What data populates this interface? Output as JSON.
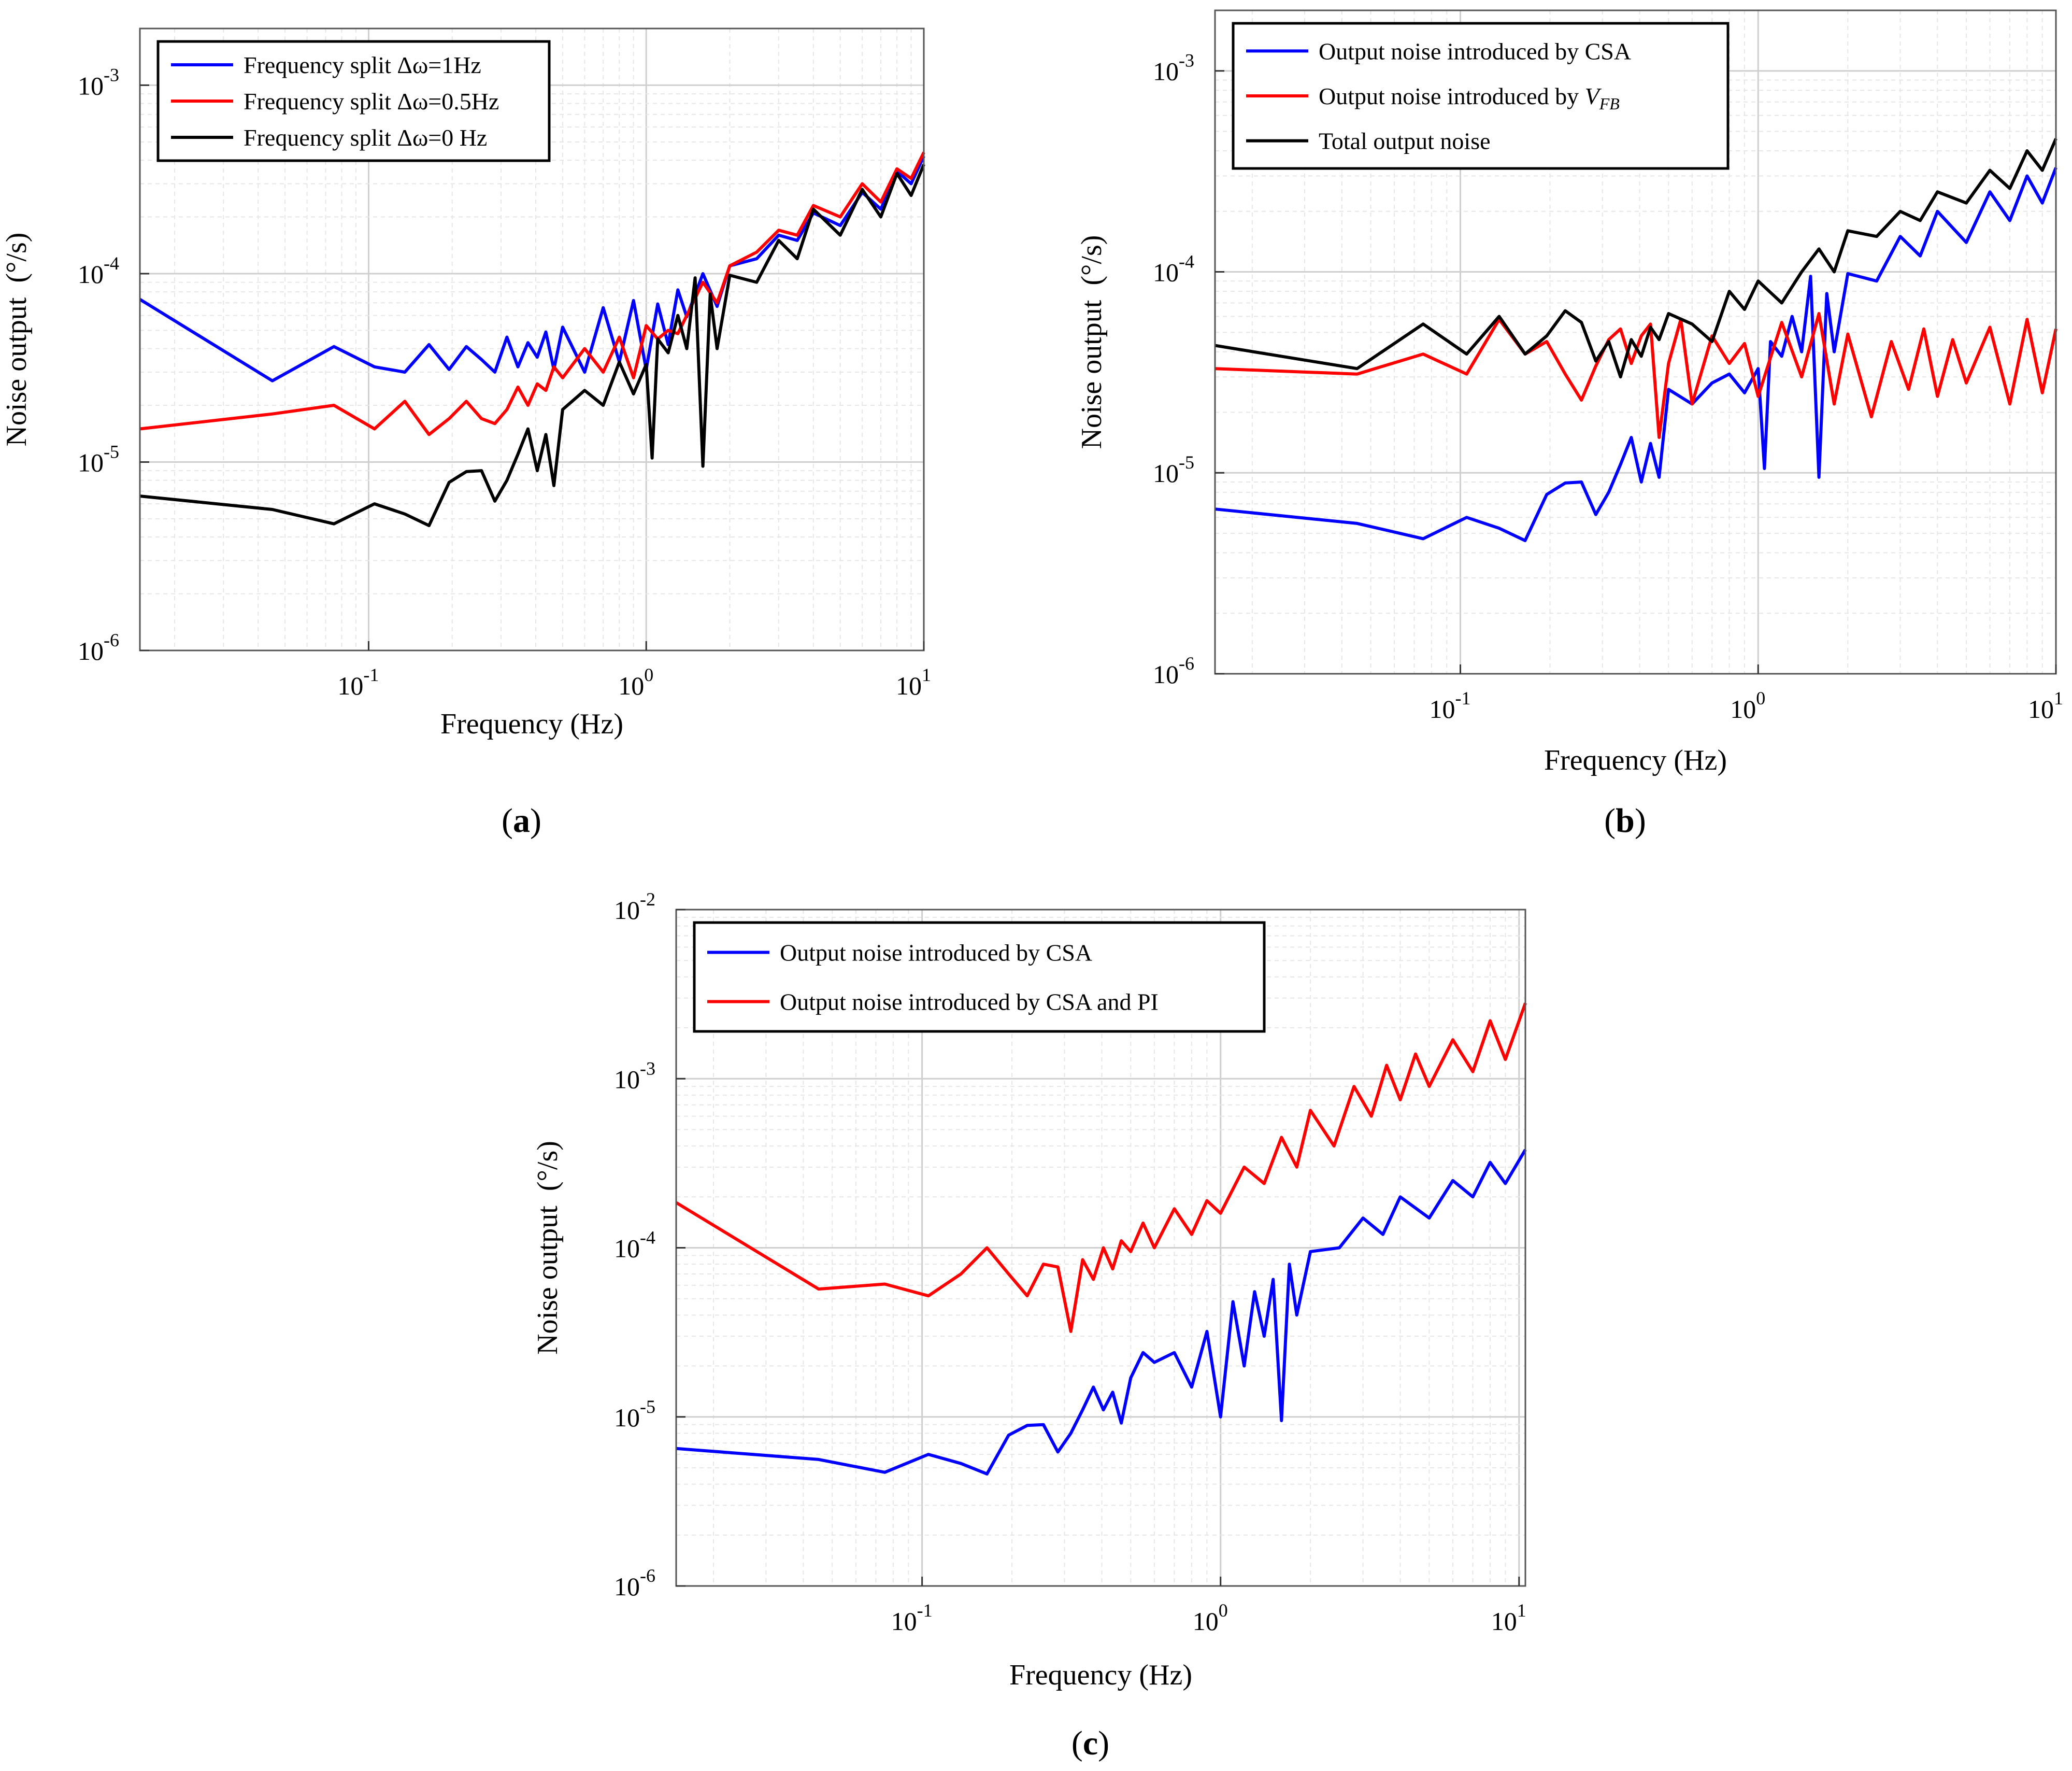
{
  "chart_data": [
    {
      "id": "a",
      "type": "line",
      "caption_letter": "a",
      "xlabel": "Frequency (Hz)",
      "ylabel": "Noise output  (°/s)",
      "xscale": "log",
      "yscale": "log",
      "xlim": [
        0.015,
        10
      ],
      "ylim": [
        1e-06,
        0.002
      ],
      "grid": true,
      "legend_position": "top-left",
      "x_tick_labels": [
        {
          "base": "10",
          "exp": "-1"
        },
        {
          "base": "10",
          "exp": "0"
        },
        {
          "base": "10",
          "exp": "1"
        }
      ],
      "y_tick_labels": [
        {
          "base": "10",
          "exp": "-6"
        },
        {
          "base": "10",
          "exp": "-5"
        },
        {
          "base": "10",
          "exp": "-4"
        },
        {
          "base": "10",
          "exp": "-3"
        }
      ],
      "series": [
        {
          "name": "Frequency split Δω=1Hz",
          "color": "#0000ff",
          "x": [
            0.015,
            0.045,
            0.075,
            0.105,
            0.135,
            0.165,
            0.195,
            0.225,
            0.255,
            0.285,
            0.315,
            0.345,
            0.375,
            0.405,
            0.435,
            0.465,
            0.5,
            0.6,
            0.7,
            0.8,
            0.9,
            1.0,
            1.1,
            1.2,
            1.3,
            1.4,
            1.6,
            1.8,
            2.0,
            2.5,
            3.0,
            3.5,
            4.0,
            5.0,
            6.0,
            7.0,
            8.0,
            9.0,
            10.0
          ],
          "y": [
            7.3e-05,
            2.7e-05,
            4.1e-05,
            3.2e-05,
            3e-05,
            4.2e-05,
            3.1e-05,
            4.1e-05,
            3.5e-05,
            3e-05,
            4.6e-05,
            3.2e-05,
            4.3e-05,
            3.6e-05,
            4.9e-05,
            3.1e-05,
            5.2e-05,
            3e-05,
            6.6e-05,
            3.4e-05,
            7.2e-05,
            3.1e-05,
            6.9e-05,
            4.2e-05,
            8.2e-05,
            5.9e-05,
            0.0001,
            6.7e-05,
            0.00011,
            0.00012,
            0.00016,
            0.00015,
            0.00021,
            0.00018,
            0.00027,
            0.00022,
            0.00035,
            0.0003,
            0.00042
          ]
        },
        {
          "name": "Frequency split Δω=0.5Hz",
          "color": "#ff0000",
          "x": [
            0.015,
            0.045,
            0.075,
            0.105,
            0.135,
            0.165,
            0.195,
            0.225,
            0.255,
            0.285,
            0.315,
            0.345,
            0.375,
            0.405,
            0.435,
            0.465,
            0.5,
            0.6,
            0.7,
            0.8,
            0.9,
            1.0,
            1.1,
            1.2,
            1.3,
            1.4,
            1.6,
            1.8,
            2.0,
            2.5,
            3.0,
            3.5,
            4.0,
            5.0,
            6.0,
            7.0,
            8.0,
            9.0,
            10.0
          ],
          "y": [
            1.5e-05,
            1.8e-05,
            2e-05,
            1.5e-05,
            2.1e-05,
            1.4e-05,
            1.7e-05,
            2.1e-05,
            1.7e-05,
            1.6e-05,
            1.9e-05,
            2.5e-05,
            2e-05,
            2.6e-05,
            2.4e-05,
            3.2e-05,
            2.8e-05,
            4e-05,
            3e-05,
            4.6e-05,
            2.8e-05,
            5.3e-05,
            4.5e-05,
            5e-05,
            4.8e-05,
            6e-05,
            9e-05,
            7e-05,
            0.00011,
            0.00013,
            0.00017,
            0.00016,
            0.00023,
            0.0002,
            0.0003,
            0.00024,
            0.00036,
            0.00032,
            0.00044
          ]
        },
        {
          "name": "Frequency split Δω=0 Hz",
          "color": "#000000",
          "x": [
            0.015,
            0.045,
            0.075,
            0.105,
            0.135,
            0.165,
            0.195,
            0.225,
            0.255,
            0.285,
            0.315,
            0.345,
            0.375,
            0.405,
            0.435,
            0.465,
            0.5,
            0.6,
            0.7,
            0.8,
            0.9,
            1.0,
            1.05,
            1.1,
            1.2,
            1.3,
            1.4,
            1.5,
            1.6,
            1.7,
            1.8,
            2.0,
            2.5,
            3.0,
            3.5,
            4.0,
            5.0,
            6.0,
            7.0,
            8.0,
            9.0,
            10.0
          ],
          "y": [
            6.6e-06,
            5.6e-06,
            4.7e-06,
            6e-06,
            5.3e-06,
            4.6e-06,
            7.8e-06,
            8.9e-06,
            9e-06,
            6.2e-06,
            8e-06,
            1.1e-05,
            1.5e-05,
            9e-06,
            1.4e-05,
            7.5e-06,
            1.9e-05,
            2.4e-05,
            2e-05,
            3.4e-05,
            2.3e-05,
            3.3e-05,
            1.05e-05,
            4.5e-05,
            3.8e-05,
            6e-05,
            4e-05,
            9.5e-05,
            9.5e-06,
            7.8e-05,
            4e-05,
            9.8e-05,
            9e-05,
            0.00015,
            0.00012,
            0.00022,
            0.00016,
            0.00028,
            0.0002,
            0.00034,
            0.00026,
            0.00038
          ]
        }
      ]
    },
    {
      "id": "b",
      "type": "line",
      "caption_letter": "b",
      "xlabel": "Frequency (Hz)",
      "ylabel": "Noise output  (°/s)",
      "xscale": "log",
      "yscale": "log",
      "xlim": [
        0.015,
        10
      ],
      "ylim": [
        1e-06,
        0.002
      ],
      "grid": true,
      "legend_position": "top-left",
      "x_tick_labels": [
        {
          "base": "10",
          "exp": "-1"
        },
        {
          "base": "10",
          "exp": "0"
        },
        {
          "base": "10",
          "exp": "1"
        }
      ],
      "y_tick_labels": [
        {
          "base": "10",
          "exp": "-6"
        },
        {
          "base": "10",
          "exp": "-5"
        },
        {
          "base": "10",
          "exp": "-4"
        },
        {
          "base": "10",
          "exp": "-3"
        }
      ],
      "series": [
        {
          "name": "Output noise introduced by CSA",
          "color": "#0000ff",
          "x": [
            0.015,
            0.045,
            0.075,
            0.105,
            0.135,
            0.165,
            0.195,
            0.225,
            0.255,
            0.285,
            0.315,
            0.345,
            0.375,
            0.405,
            0.435,
            0.465,
            0.5,
            0.6,
            0.7,
            0.8,
            0.9,
            1.0,
            1.05,
            1.1,
            1.2,
            1.3,
            1.4,
            1.5,
            1.6,
            1.7,
            1.8,
            2.0,
            2.5,
            3.0,
            3.5,
            4.0,
            5.0,
            6.0,
            7.0,
            8.0,
            9.0,
            10.0
          ],
          "y": [
            6.6e-06,
            5.6e-06,
            4.7e-06,
            6e-06,
            5.3e-06,
            4.6e-06,
            7.8e-06,
            8.9e-06,
            9e-06,
            6.2e-06,
            8e-06,
            1.1e-05,
            1.5e-05,
            9e-06,
            1.4e-05,
            9.5e-06,
            2.6e-05,
            2.2e-05,
            2.8e-05,
            3.1e-05,
            2.5e-05,
            3.3e-05,
            1.05e-05,
            4.5e-05,
            3.8e-05,
            6e-05,
            4e-05,
            9.5e-05,
            9.5e-06,
            7.8e-05,
            4e-05,
            9.8e-05,
            9e-05,
            0.00015,
            0.00012,
            0.0002,
            0.00014,
            0.00025,
            0.00018,
            0.0003,
            0.00022,
            0.00033
          ]
        },
        {
          "name": "Output noise introduced by V_FB",
          "name_main": "Output noise introduced by ",
          "name_var": "V",
          "name_sub": "FB",
          "color": "#ff0000",
          "x": [
            0.015,
            0.045,
            0.075,
            0.105,
            0.135,
            0.165,
            0.195,
            0.225,
            0.255,
            0.285,
            0.315,
            0.345,
            0.375,
            0.405,
            0.435,
            0.465,
            0.5,
            0.55,
            0.6,
            0.7,
            0.8,
            0.9,
            1.0,
            1.2,
            1.4,
            1.6,
            1.8,
            2.0,
            2.4,
            2.8,
            3.2,
            3.6,
            4.0,
            4.5,
            5.0,
            6.0,
            7.0,
            8.0,
            9.0,
            10.0
          ],
          "y": [
            3.3e-05,
            3.1e-05,
            3.9e-05,
            3.1e-05,
            5.8e-05,
            3.9e-05,
            4.5e-05,
            3.1e-05,
            2.3e-05,
            3.4e-05,
            4.6e-05,
            5.2e-05,
            3.5e-05,
            4.8e-05,
            5.5e-05,
            1.5e-05,
            3.5e-05,
            5.8e-05,
            2.2e-05,
            4.8e-05,
            3.5e-05,
            4.4e-05,
            2.4e-05,
            5.6e-05,
            3e-05,
            6.2e-05,
            2.2e-05,
            4.9e-05,
            1.9e-05,
            4.5e-05,
            2.6e-05,
            5.2e-05,
            2.4e-05,
            4.6e-05,
            2.8e-05,
            5.3e-05,
            2.2e-05,
            5.8e-05,
            2.5e-05,
            5.2e-05
          ]
        },
        {
          "name": "Total output noise",
          "color": "#000000",
          "x": [
            0.015,
            0.045,
            0.075,
            0.105,
            0.135,
            0.165,
            0.195,
            0.225,
            0.255,
            0.285,
            0.315,
            0.345,
            0.375,
            0.405,
            0.435,
            0.465,
            0.5,
            0.6,
            0.7,
            0.8,
            0.9,
            1.0,
            1.2,
            1.4,
            1.6,
            1.8,
            2.0,
            2.5,
            3.0,
            3.5,
            4.0,
            5.0,
            6.0,
            7.0,
            8.0,
            9.0,
            10.0
          ],
          "y": [
            4.3e-05,
            3.3e-05,
            5.5e-05,
            3.9e-05,
            6e-05,
            3.9e-05,
            4.8e-05,
            6.4e-05,
            5.6e-05,
            3.6e-05,
            4.5e-05,
            3e-05,
            4.6e-05,
            3.8e-05,
            5.3e-05,
            4.6e-05,
            6.2e-05,
            5.5e-05,
            4.5e-05,
            8e-05,
            6.5e-05,
            9e-05,
            7e-05,
            0.0001,
            0.00013,
            0.0001,
            0.00016,
            0.00015,
            0.0002,
            0.00018,
            0.00025,
            0.00022,
            0.00032,
            0.00026,
            0.0004,
            0.00032,
            0.00046
          ]
        }
      ]
    },
    {
      "id": "c",
      "type": "line",
      "caption_letter": "c",
      "xlabel": "Frequency (Hz)",
      "ylabel": "Noise output  (°/s)",
      "xscale": "log",
      "yscale": "log",
      "xlim": [
        0.015,
        10.5
      ],
      "ylim": [
        1e-06,
        0.01
      ],
      "grid": true,
      "legend_position": "top-left",
      "x_tick_labels": [
        {
          "base": "10",
          "exp": "-1"
        },
        {
          "base": "10",
          "exp": "0"
        },
        {
          "base": "10",
          "exp": "1"
        }
      ],
      "y_tick_labels": [
        {
          "base": "10",
          "exp": "-6"
        },
        {
          "base": "10",
          "exp": "-5"
        },
        {
          "base": "10",
          "exp": "-4"
        },
        {
          "base": "10",
          "exp": "-3"
        },
        {
          "base": "10",
          "exp": "-2"
        }
      ],
      "series": [
        {
          "name": "Output noise introduced by CSA",
          "color": "#0000ff",
          "x": [
            0.015,
            0.045,
            0.075,
            0.105,
            0.135,
            0.165,
            0.195,
            0.225,
            0.255,
            0.285,
            0.315,
            0.345,
            0.375,
            0.405,
            0.435,
            0.465,
            0.5,
            0.55,
            0.6,
            0.7,
            0.8,
            0.9,
            1.0,
            1.1,
            1.2,
            1.3,
            1.4,
            1.5,
            1.6,
            1.7,
            1.8,
            2.0,
            2.5,
            3.0,
            3.5,
            4.0,
            5.0,
            6.0,
            7.0,
            8.0,
            9.0,
            10.5
          ],
          "y": [
            6.5e-06,
            5.6e-06,
            4.7e-06,
            6e-06,
            5.3e-06,
            4.6e-06,
            7.8e-06,
            8.9e-06,
            9e-06,
            6.2e-06,
            8e-06,
            1.1e-05,
            1.5e-05,
            1.1e-05,
            1.4e-05,
            9.2e-06,
            1.7e-05,
            2.4e-05,
            2.1e-05,
            2.4e-05,
            1.5e-05,
            3.2e-05,
            1e-05,
            4.8e-05,
            2e-05,
            5.5e-05,
            3e-05,
            6.5e-05,
            9.5e-06,
            8e-05,
            4e-05,
            9.5e-05,
            0.0001,
            0.00015,
            0.00012,
            0.0002,
            0.00015,
            0.00025,
            0.0002,
            0.00032,
            0.00024,
            0.00038
          ]
        },
        {
          "name": "Output noise introduced by CSA and PI",
          "color": "#ff0000",
          "x": [
            0.015,
            0.045,
            0.075,
            0.105,
            0.135,
            0.165,
            0.195,
            0.225,
            0.255,
            0.285,
            0.315,
            0.345,
            0.375,
            0.405,
            0.435,
            0.465,
            0.5,
            0.55,
            0.6,
            0.7,
            0.8,
            0.9,
            1.0,
            1.2,
            1.4,
            1.6,
            1.8,
            2.0,
            2.4,
            2.8,
            3.2,
            3.6,
            4.0,
            4.5,
            5.0,
            6.0,
            7.0,
            8.0,
            9.0,
            10.5
          ],
          "y": [
            0.000185,
            5.7e-05,
            6.1e-05,
            5.2e-05,
            7e-05,
            0.0001,
            7e-05,
            5.2e-05,
            8e-05,
            7.7e-05,
            3.2e-05,
            8.5e-05,
            6.5e-05,
            0.0001,
            7.5e-05,
            0.00011,
            9.5e-05,
            0.00014,
            0.0001,
            0.00017,
            0.00012,
            0.00019,
            0.00016,
            0.0003,
            0.00024,
            0.00045,
            0.0003,
            0.00065,
            0.0004,
            0.0009,
            0.0006,
            0.0012,
            0.00075,
            0.0014,
            0.0009,
            0.0017,
            0.0011,
            0.0022,
            0.0013,
            0.0028
          ]
        }
      ]
    }
  ]
}
